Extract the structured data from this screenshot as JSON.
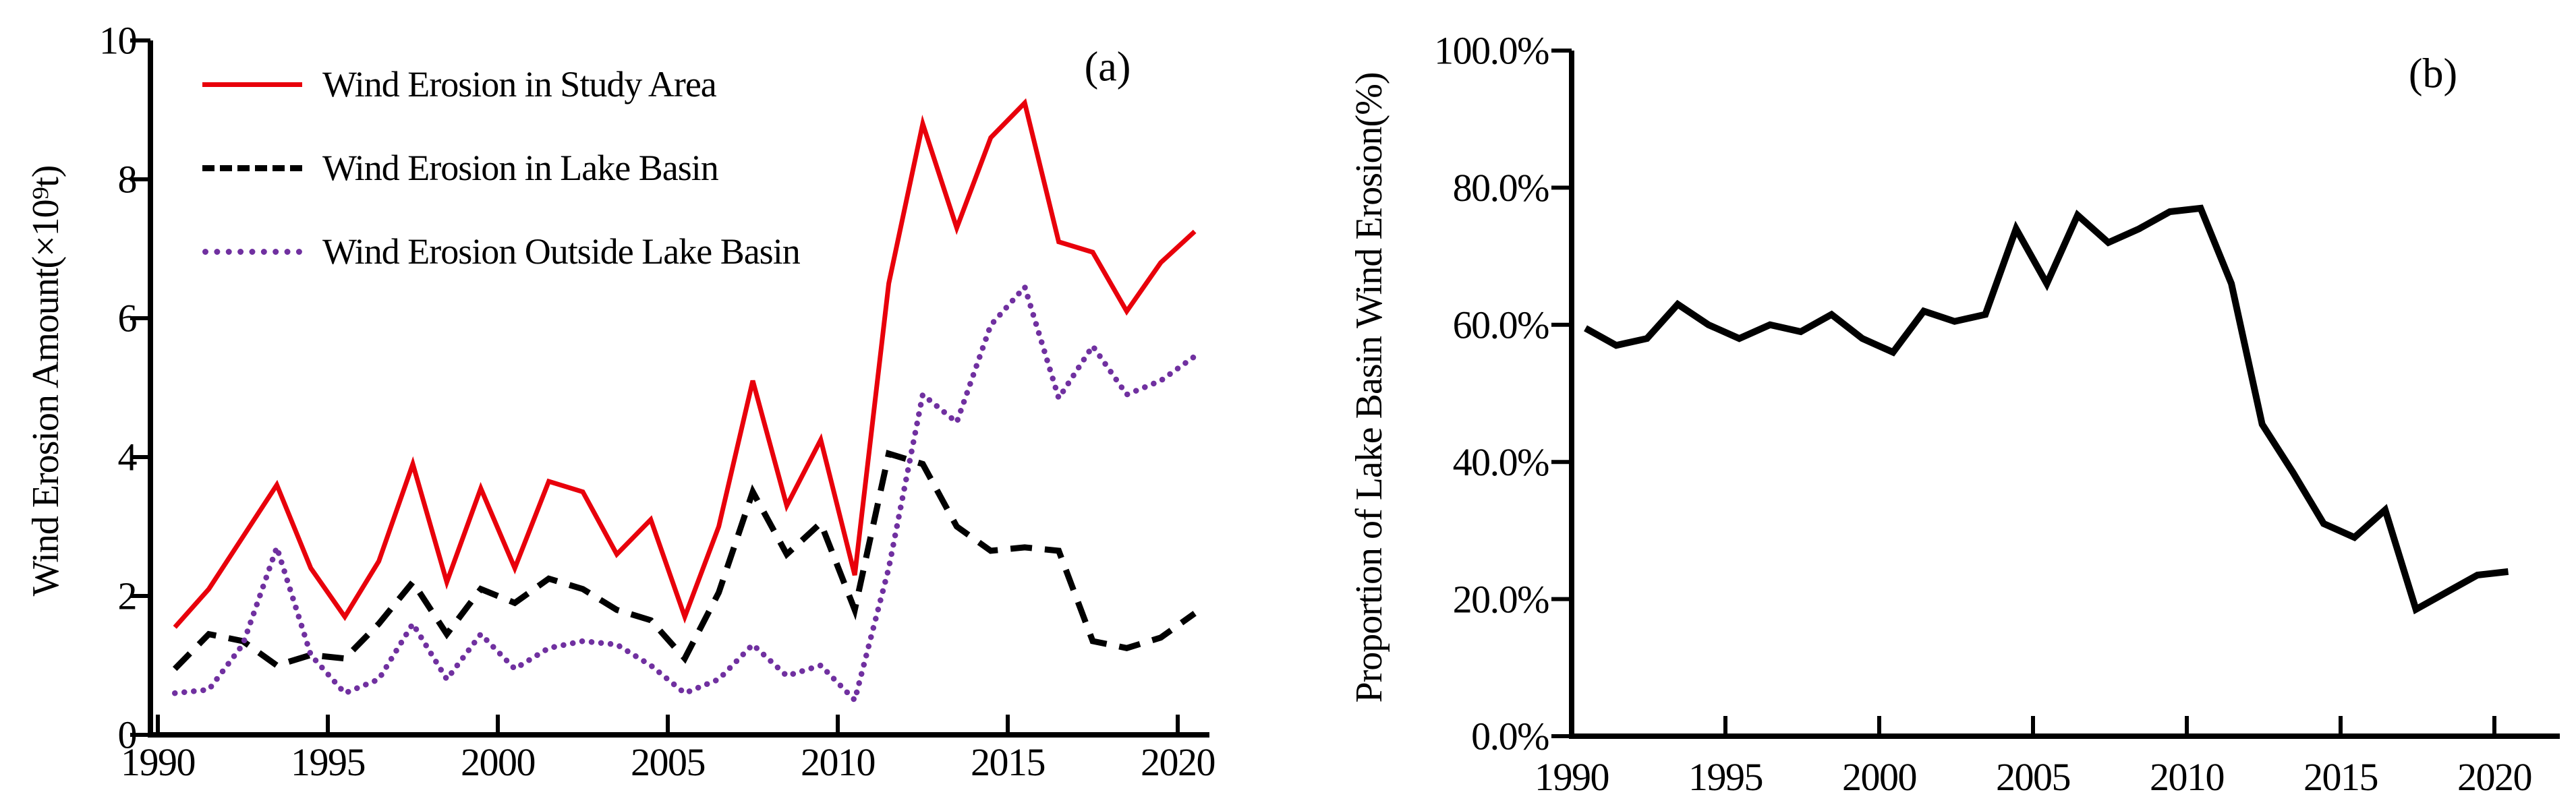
{
  "figure": {
    "panel_a_tag": "(a)",
    "panel_b_tag": "(b)",
    "background": "#ffffff",
    "colors": {
      "study_area": "#e8000b",
      "lake_basin": "#000000",
      "outside_basin": "#7030a0",
      "axis": "#000000"
    }
  },
  "legend": {
    "items": [
      {
        "label": "Wind Erosion in Study Area",
        "series": "study_area",
        "style": "solid"
      },
      {
        "label": "Wind Erosion in Lake Basin",
        "series": "lake_basin",
        "style": "dashed"
      },
      {
        "label": "Wind Erosion Outside Lake Basin",
        "series": "outside_basin",
        "style": "dotted"
      }
    ]
  },
  "panel_a": {
    "ylabel": "Wind Erosion Amount(×10⁹t)"
  },
  "panel_b": {
    "ylabel": "Proportion of Lake Basin Wind Erosion(%)"
  },
  "chart_data": [
    {
      "id": "a",
      "type": "line",
      "title": "",
      "xlabel": "",
      "ylabel": "Wind Erosion Amount(×10⁹t)",
      "x": [
        1990,
        1991,
        1992,
        1993,
        1994,
        1995,
        1996,
        1997,
        1998,
        1999,
        2000,
        2001,
        2002,
        2003,
        2004,
        2005,
        2006,
        2007,
        2008,
        2009,
        2010,
        2011,
        2012,
        2013,
        2014,
        2015,
        2016,
        2017,
        2018,
        2019,
        2020
      ],
      "ylim": [
        0,
        10
      ],
      "y_ticks": [
        0,
        2,
        4,
        6,
        8,
        10
      ],
      "y_tick_labels": [
        "0",
        "2",
        "4",
        "6",
        "8",
        "10"
      ],
      "x_tick_years": [
        1990,
        1995,
        2000,
        2005,
        2010,
        2015,
        2020
      ],
      "x_tick_labels": [
        "1990",
        "1995",
        "2000",
        "2005",
        "2010",
        "2015",
        "2020"
      ],
      "grid": false,
      "legend_position": "top-left",
      "series": [
        {
          "name": "Wind Erosion in Study Area",
          "color": "#e8000b",
          "style": "solid",
          "values": [
            1.55,
            2.1,
            2.85,
            3.6,
            2.4,
            1.7,
            2.5,
            3.9,
            2.2,
            3.55,
            2.4,
            3.65,
            3.5,
            2.6,
            3.1,
            1.7,
            3.0,
            5.1,
            3.3,
            4.25,
            2.3,
            6.5,
            8.8,
            7.3,
            8.6,
            9.1,
            7.1,
            6.95,
            6.1,
            6.8,
            7.25
          ]
        },
        {
          "name": "Wind Erosion in Lake Basin",
          "color": "#000000",
          "style": "dashed",
          "values": [
            0.95,
            1.45,
            1.35,
            1.0,
            1.15,
            1.1,
            1.6,
            2.2,
            1.45,
            2.1,
            1.9,
            2.25,
            2.1,
            1.8,
            1.65,
            1.1,
            2.05,
            3.5,
            2.6,
            3.05,
            1.8,
            4.05,
            3.9,
            3.0,
            2.65,
            2.7,
            2.65,
            1.35,
            1.25,
            1.4,
            1.75
          ]
        },
        {
          "name": "Wind Erosion Outside Lake Basin",
          "color": "#7030a0",
          "style": "dotted",
          "values": [
            0.6,
            0.65,
            1.3,
            2.7,
            1.15,
            0.6,
            0.8,
            1.6,
            0.8,
            1.45,
            0.95,
            1.25,
            1.35,
            1.3,
            1.0,
            0.6,
            0.8,
            1.3,
            0.85,
            1.0,
            0.5,
            2.4,
            4.9,
            4.5,
            5.9,
            6.45,
            4.85,
            5.6,
            4.9,
            5.1,
            5.45
          ]
        }
      ]
    },
    {
      "id": "b",
      "type": "line",
      "title": "",
      "xlabel": "",
      "ylabel": "Proportion of Lake Basin Wind Erosion(%)",
      "x": [
        1990,
        1991,
        1992,
        1993,
        1994,
        1995,
        1996,
        1997,
        1998,
        1999,
        2000,
        2001,
        2002,
        2003,
        2004,
        2005,
        2006,
        2007,
        2008,
        2009,
        2010,
        2011,
        2012,
        2013,
        2014,
        2015,
        2016,
        2017,
        2018,
        2019,
        2020
      ],
      "ylim": [
        0,
        100
      ],
      "y_ticks": [
        0,
        20,
        40,
        60,
        80,
        100
      ],
      "y_tick_labels": [
        "0.0%",
        "20.0%",
        "40.0%",
        "60.0%",
        "80.0%",
        "100.0%"
      ],
      "x_tick_years": [
        1990,
        1995,
        2000,
        2005,
        2010,
        2015,
        2020
      ],
      "x_tick_labels": [
        "1990",
        "1995",
        "2000",
        "2005",
        "2010",
        "2015",
        "2020"
      ],
      "grid": false,
      "legend_position": "none",
      "series": [
        {
          "name": "Proportion of Lake Basin Wind Erosion",
          "color": "#000000",
          "style": "solid",
          "values": [
            59.5,
            57,
            58,
            63,
            60,
            58,
            60,
            59,
            61.5,
            58,
            56,
            62,
            60.5,
            61.5,
            74,
            66,
            76,
            72,
            74,
            76.5,
            77,
            66,
            45.5,
            38.5,
            31,
            29,
            33,
            18.5,
            21,
            23.5,
            24
          ]
        }
      ]
    }
  ]
}
